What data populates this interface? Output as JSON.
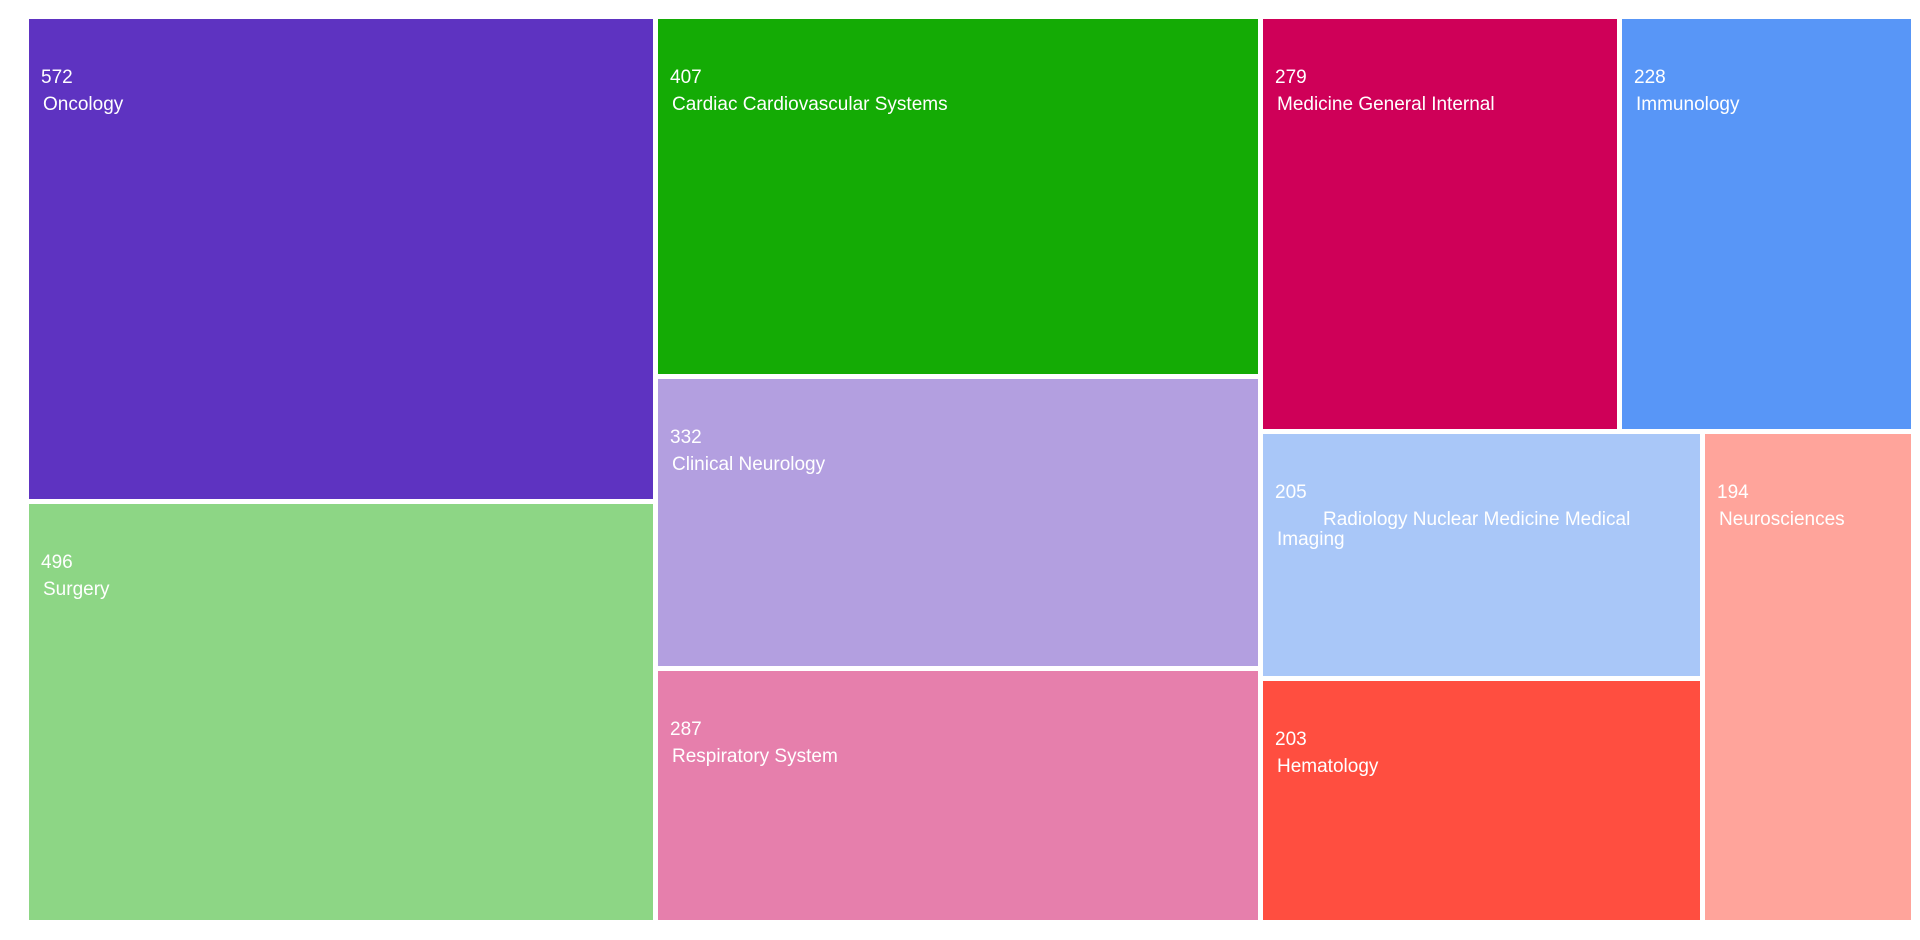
{
  "chart_data": {
    "type": "treemap",
    "items": [
      {
        "label": "Oncology",
        "value": 572,
        "color": "#5e33c1"
      },
      {
        "label": "Surgery",
        "value": 496,
        "color": "#8dd685"
      },
      {
        "label": "Cardiac Cardiovascular Systems",
        "value": 407,
        "color": "#14ab05"
      },
      {
        "label": "Clinical Neurology",
        "value": 332,
        "color": "#b39fe0"
      },
      {
        "label": "Respiratory System",
        "value": 287,
        "color": "#e67fac"
      },
      {
        "label": "Medicine General Internal",
        "value": 279,
        "color": "#cf0058"
      },
      {
        "label": "Immunology",
        "value": 228,
        "color": "#5896f7"
      },
      {
        "label": "Radiology Nuclear Medicine Medical Imaging",
        "value": 205,
        "color": "#a9c7f8"
      },
      {
        "label": "Hematology",
        "value": 203,
        "color": "#ff4e40"
      },
      {
        "label": "Neurosciences",
        "value": 194,
        "color": "#ffa49b"
      }
    ]
  }
}
